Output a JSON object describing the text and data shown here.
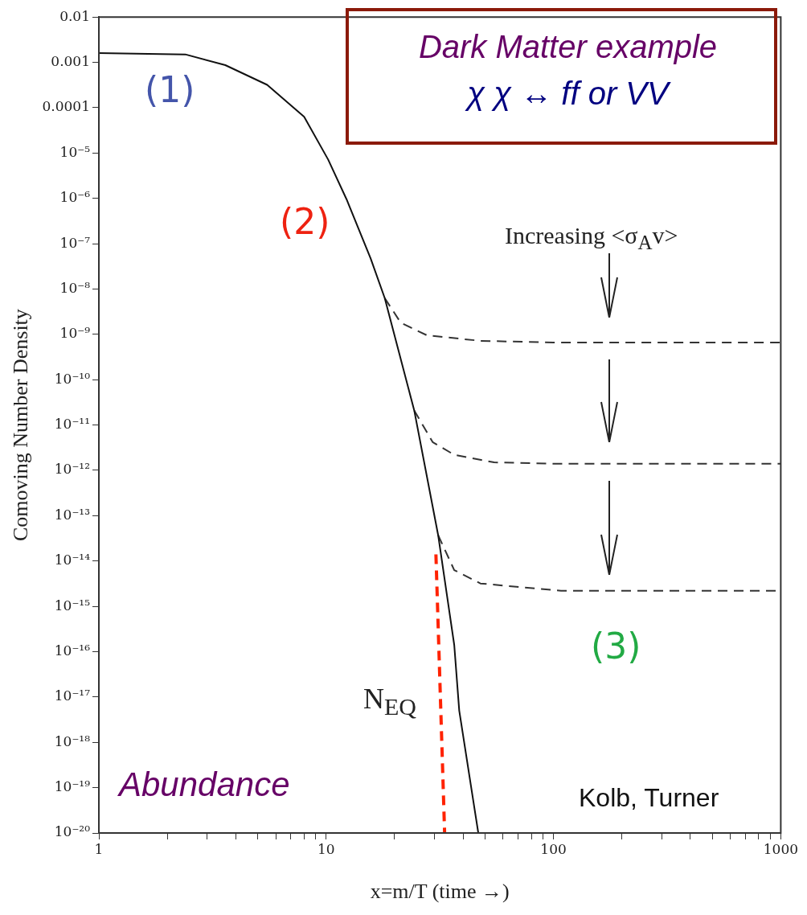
{
  "chart_data": {
    "type": "line",
    "xlabel": "x=m/T (time →)",
    "ylabel": "Comoving Number Density",
    "log": "xy",
    "grid": false,
    "legend": false,
    "marker": "none",
    "xlim": [
      1,
      1000
    ],
    "ylim": [
      1e-20,
      0.01
    ],
    "xticks": [
      1,
      {
        "value": 2,
        "label": null
      },
      {
        "value": 3,
        "label": null
      },
      {
        "value": 4,
        "label": null
      },
      {
        "value": 5,
        "label": null
      },
      {
        "value": 6,
        "label": null
      },
      {
        "value": 7,
        "label": null
      },
      {
        "value": 8,
        "label": null
      },
      {
        "value": 9,
        "label": null
      },
      10,
      {
        "value": 20,
        "label": null
      },
      {
        "value": 30,
        "label": null
      },
      {
        "value": 40,
        "label": null
      },
      {
        "value": 50,
        "label": null
      },
      {
        "value": 60,
        "label": null
      },
      {
        "value": 70,
        "label": null
      },
      {
        "value": 80,
        "label": null
      },
      {
        "value": 90,
        "label": null
      },
      100,
      {
        "value": 200,
        "label": null
      },
      {
        "value": 300,
        "label": null
      },
      {
        "value": 400,
        "label": null
      },
      {
        "value": 500,
        "label": null
      },
      {
        "value": 600,
        "label": null
      },
      {
        "value": 700,
        "label": null
      },
      {
        "value": 800,
        "label": null
      },
      {
        "value": 900,
        "label": null
      },
      1000
    ],
    "yticks": [
      {
        "value": 1e-20,
        "label": "10⁻²⁰"
      },
      {
        "value": 1e-19,
        "label": "10⁻¹⁹"
      },
      {
        "value": 1e-18,
        "label": "10⁻¹⁸"
      },
      {
        "value": 1e-17,
        "label": "10⁻¹⁷"
      },
      {
        "value": 1e-16,
        "label": "10⁻¹⁶"
      },
      {
        "value": 1e-15,
        "label": "10⁻¹⁵"
      },
      {
        "value": 1e-14,
        "label": "10⁻¹⁴"
      },
      {
        "value": 1e-13,
        "label": "10⁻¹³"
      },
      {
        "value": 1e-12,
        "label": "10⁻¹²"
      },
      {
        "value": 1e-11,
        "label": "10⁻¹¹"
      },
      {
        "value": 1e-10,
        "label": "10⁻¹⁰"
      },
      {
        "value": 1e-09,
        "label": "10⁻⁹"
      },
      {
        "value": 1e-08,
        "label": "10⁻⁸"
      },
      {
        "value": 1e-07,
        "label": "10⁻⁷"
      },
      {
        "value": 1e-06,
        "label": "10⁻⁶"
      },
      {
        "value": 1e-05,
        "label": "10⁻⁵"
      },
      0.0001,
      0.001,
      0.01
    ],
    "series": [
      {
        "color": "#111111",
        "line_style": "solid",
        "x": [
          1,
          2.4,
          3.6,
          5.5,
          8,
          10.2,
          12.3,
          15.7,
          18.1,
          24.4,
          31.1,
          36.6,
          38.5,
          46.7
        ],
        "values": [
          0.0016,
          0.0015,
          0.00087,
          0.00032,
          6.3e-05,
          7.2e-06,
          9.5e-07,
          4.7e-08,
          6.3e-09,
          2.1e-11,
          3.7e-14,
          1.4e-16,
          5e-18,
          1e-20
        ]
      },
      {
        "color": "#333333",
        "line_style": "dashed",
        "x": [
          18.1,
          21.3,
          27.8,
          47.7,
          100,
          1000
        ],
        "values": [
          6.3e-09,
          1.8e-09,
          9.5e-10,
          7.2e-10,
          6.6e-10,
          6.6e-10
        ]
      },
      {
        "color": "#333333",
        "line_style": "dashed",
        "x": [
          24.4,
          29.4,
          36.6,
          54.8,
          100,
          1000
        ],
        "values": [
          2.1e-11,
          4.2e-12,
          2.2e-12,
          1.5e-12,
          1.4e-12,
          1.4e-12
        ]
      },
      {
        "color": "#333333",
        "line_style": "dashed",
        "x": [
          31.1,
          36.6,
          47.7,
          108,
          1000
        ],
        "values": [
          3.7e-14,
          6.3e-15,
          3.2e-15,
          2.2e-15,
          2.2e-15
        ]
      },
      {
        "color": "#ff2200",
        "line_style": "dashed",
        "x": [
          30.4,
          33.2
        ],
        "values": [
          1.4e-14,
          1e-20
        ]
      }
    ],
    "annotations": [
      "Dark Matter example",
      "χ χ ↔ ff or VV",
      "(1)",
      "(2)",
      "Increasing <σ$_{A}$v>",
      "(3)",
      "N$_{EQ}$",
      "Abundance",
      "Kolb, Turner"
    ]
  }
}
